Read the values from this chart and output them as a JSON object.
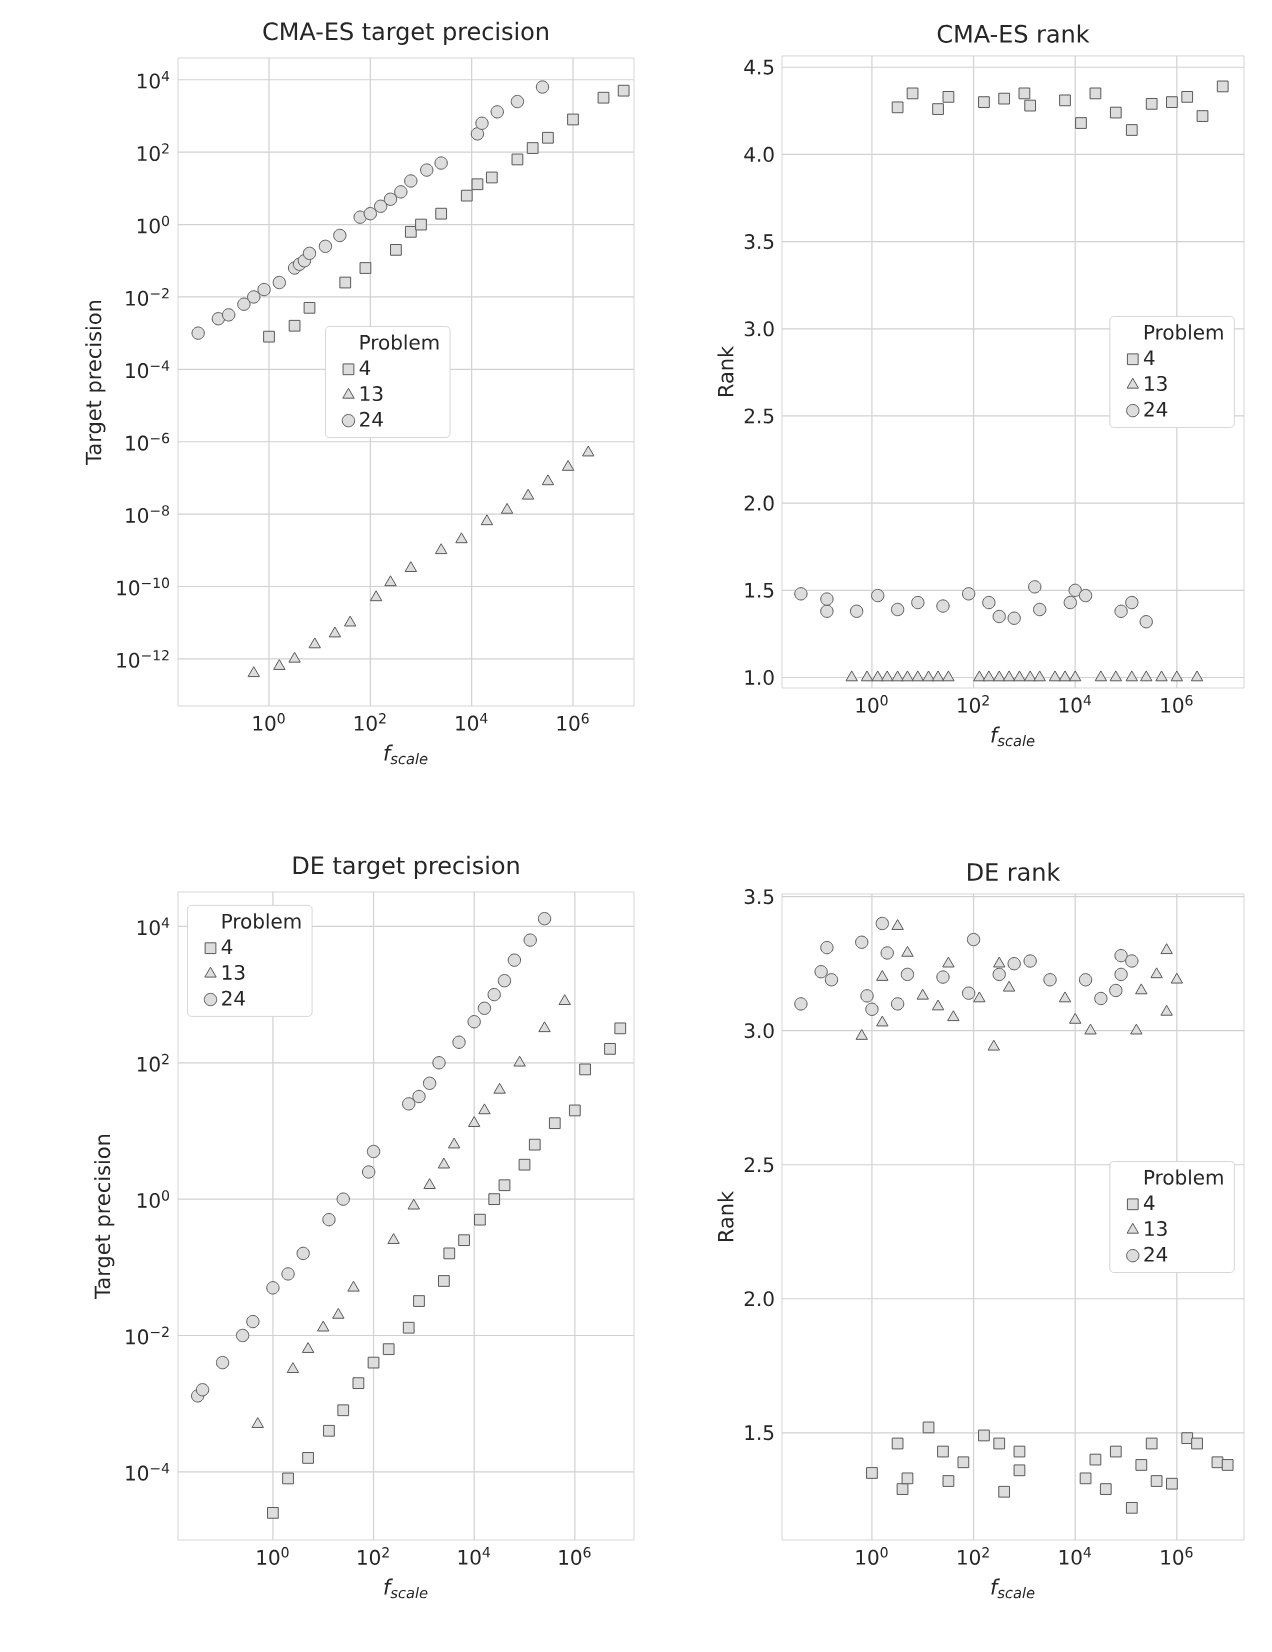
{
  "chart_data": [
    {
      "type": "scatter",
      "title": "CMA-ES target precision",
      "xlabel": "f$_{scale}$",
      "ylabel": "Target precision",
      "legend_title": "Problem",
      "legend": "center",
      "grid": true,
      "log": "xy",
      "xlim": [
        0.016,
        16000000
      ],
      "ylim": [
        5e-14,
        40000
      ],
      "xticks": [
        {
          "value": 1,
          "label": "10$^{0}$"
        },
        {
          "value": 100,
          "label": "10$^{2}$"
        },
        {
          "value": 10000,
          "label": "10$^{4}$"
        },
        {
          "value": 1000000,
          "label": "10$^{6}$"
        }
      ],
      "yticks": [
        {
          "value": 1e-12,
          "label": "10$^{−12}$"
        },
        {
          "value": 1e-10,
          "label": "10$^{−10}$"
        },
        {
          "value": 1e-08,
          "label": "10$^{−8}$"
        },
        {
          "value": 1e-06,
          "label": "10$^{−6}$"
        },
        {
          "value": 0.0001,
          "label": "10$^{−4}$"
        },
        {
          "value": 0.01,
          "label": "10$^{−2}$"
        },
        {
          "value": 1,
          "label": "10$^{0}$"
        },
        {
          "value": 100,
          "label": "10$^{2}$"
        },
        {
          "value": 10000,
          "label": "10$^{4}$"
        }
      ],
      "series": [
        {
          "name": "4",
          "color": "#dddddd",
          "marker": "square",
          "x": [
            1,
            3.2,
            6.3,
            32,
            80,
            320,
            630,
            1000,
            2500,
            8000,
            13000,
            25000,
            80000,
            160000,
            320000,
            1000000,
            4000000,
            10000000
          ],
          "values": [
            0.0008,
            0.0016,
            0.005,
            0.025,
            0.063,
            0.2,
            0.63,
            1,
            2,
            6.3,
            13,
            20,
            63,
            130,
            250,
            800,
            3200,
            5000
          ]
        },
        {
          "name": "13",
          "color": "#dddddd",
          "marker": "triangle",
          "x": [
            0.5,
            1.6,
            3.2,
            8,
            20,
            40,
            130,
            250,
            630,
            2500,
            6300,
            20000,
            50000,
            130000,
            320000,
            800000,
            2000000
          ],
          "values": [
            4e-13,
            6.3e-13,
            1e-12,
            2.5e-12,
            5e-12,
            1e-11,
            5e-11,
            1.3e-10,
            3.2e-10,
            1e-09,
            2e-09,
            6.3e-09,
            1.3e-08,
            3.2e-08,
            8e-08,
            2e-07,
            5e-07
          ]
        },
        {
          "name": "24",
          "color": "#dddddd",
          "marker": "circle",
          "x": [
            0.04,
            0.1,
            0.16,
            0.32,
            0.5,
            0.8,
            1.6,
            3.2,
            4,
            5,
            6.3,
            13,
            25,
            63,
            100,
            160,
            250,
            400,
            630,
            1300,
            2500,
            13000,
            16000,
            32000,
            80000,
            250000
          ],
          "values": [
            0.001,
            0.0025,
            0.0032,
            0.0063,
            0.01,
            0.016,
            0.025,
            0.063,
            0.08,
            0.1,
            0.16,
            0.25,
            0.5,
            1.6,
            2,
            3.2,
            5,
            8,
            16,
            32,
            50,
            320,
            630,
            1300,
            2500,
            6300
          ]
        }
      ]
    },
    {
      "type": "scatter",
      "title": "CMA-ES rank",
      "xlabel": "f$_{scale}$",
      "ylabel": "Rank",
      "legend_title": "Problem",
      "legend": "center right",
      "grid": true,
      "log": "x",
      "xlim": [
        0.017,
        21000000
      ],
      "ylim": [
        0.94,
        4.565
      ],
      "xticks": [
        {
          "value": 1,
          "label": "10$^{0}$"
        },
        {
          "value": 100,
          "label": "10$^{2}$"
        },
        {
          "value": 10000,
          "label": "10$^{4}$"
        },
        {
          "value": 1000000,
          "label": "10$^{6}$"
        }
      ],
      "yticks": [
        {
          "value": 1,
          "label": "1.0"
        },
        1.5,
        {
          "value": 2,
          "label": "2.0"
        },
        2.5,
        {
          "value": 3,
          "label": "3.0"
        },
        3.5,
        {
          "value": 4,
          "label": "4.0"
        },
        4.5
      ],
      "series": [
        {
          "name": "4",
          "color": "#dddddd",
          "marker": "square",
          "x": [
            3.2,
            6.3,
            20,
            32,
            160,
            400,
            1000,
            1300,
            6300,
            13000,
            25000,
            63000,
            130000,
            320000,
            800000,
            1600000,
            3200000,
            8000000
          ],
          "values": [
            4.27,
            4.35,
            4.26,
            4.33,
            4.3,
            4.32,
            4.35,
            4.28,
            4.31,
            4.18,
            4.35,
            4.24,
            4.14,
            4.29,
            4.3,
            4.33,
            4.22,
            4.39
          ]
        },
        {
          "name": "13",
          "color": "#dddddd",
          "marker": "triangle",
          "x": [
            0.4,
            0.8,
            1.3,
            2,
            3.2,
            5,
            8,
            13,
            20,
            32,
            130,
            200,
            320,
            500,
            800,
            1300,
            2000,
            4000,
            6300,
            10000,
            32000,
            63000,
            130000,
            250000,
            500000,
            1000000,
            2500000
          ],
          "values": [
            1,
            1,
            1,
            1,
            1,
            1,
            1,
            1,
            1,
            1,
            1,
            1,
            1,
            1,
            1,
            1,
            1,
            1,
            1,
            1,
            1,
            1,
            1,
            1,
            1,
            1,
            1
          ]
        },
        {
          "name": "24",
          "color": "#dddddd",
          "marker": "circle",
          "x": [
            0.04,
            0.13,
            0.13,
            0.5,
            1.3,
            3.2,
            8,
            25,
            80,
            200,
            320,
            630,
            1600,
            2000,
            8000,
            10000,
            16000,
            80000,
            130000,
            250000
          ],
          "values": [
            1.48,
            1.38,
            1.45,
            1.38,
            1.47,
            1.39,
            1.43,
            1.41,
            1.48,
            1.43,
            1.35,
            1.34,
            1.52,
            1.39,
            1.43,
            1.5,
            1.47,
            1.38,
            1.43,
            1.32
          ]
        }
      ]
    },
    {
      "type": "scatter",
      "title": "DE target precision",
      "xlabel": "f$_{scale}$",
      "ylabel": "Target precision",
      "legend_title": "Problem",
      "legend": "top left",
      "grid": true,
      "log": "xy",
      "xlim": [
        0.013,
        15000000
      ],
      "ylim": [
        1e-05,
        32000
      ],
      "xticks": [
        {
          "value": 1,
          "label": "10$^{0}$"
        },
        {
          "value": 100,
          "label": "10$^{2}$"
        },
        {
          "value": 10000,
          "label": "10$^{4}$"
        },
        {
          "value": 1000000,
          "label": "10$^{6}$"
        }
      ],
      "yticks": [
        {
          "value": 0.0001,
          "label": "10$^{−4}$"
        },
        {
          "value": 0.01,
          "label": "10$^{−2}$"
        },
        {
          "value": 1,
          "label": "10$^{0}$"
        },
        {
          "value": 100,
          "label": "10$^{2}$"
        },
        {
          "value": 10000,
          "label": "10$^{4}$"
        }
      ],
      "series": [
        {
          "name": "4",
          "color": "#dddddd",
          "marker": "square",
          "x": [
            1,
            2,
            5,
            13,
            25,
            50,
            100,
            200,
            500,
            800,
            2500,
            3200,
            6300,
            13000,
            25000,
            40000,
            100000,
            160000,
            400000,
            1000000,
            1600000,
            5000000,
            8000000
          ],
          "values": [
            2.5e-05,
            8e-05,
            0.00016,
            0.0004,
            0.0008,
            0.002,
            0.004,
            0.0063,
            0.013,
            0.032,
            0.063,
            0.16,
            0.25,
            0.5,
            1,
            1.6,
            3.2,
            6.3,
            13,
            20,
            80,
            160,
            320
          ]
        },
        {
          "name": "13",
          "color": "#dddddd",
          "marker": "triangle",
          "x": [
            0.5,
            2.5,
            5,
            10,
            20,
            40,
            250,
            630,
            1300,
            2500,
            4000,
            10000,
            16000,
            32000,
            80000,
            250000,
            630000
          ],
          "values": [
            0.0005,
            0.0032,
            0.0063,
            0.013,
            0.02,
            0.05,
            0.25,
            0.8,
            1.6,
            3.2,
            6.3,
            13,
            20,
            40,
            100,
            320,
            800
          ]
        },
        {
          "name": "24",
          "color": "#dddddd",
          "marker": "circle",
          "x": [
            0.032,
            0.04,
            0.1,
            0.25,
            0.4,
            1,
            2,
            4,
            13,
            25,
            80,
            100,
            500,
            800,
            1300,
            2000,
            5000,
            10000,
            16000,
            25000,
            40000,
            63000,
            130000,
            250000
          ],
          "values": [
            0.0013,
            0.0016,
            0.004,
            0.01,
            0.016,
            0.05,
            0.08,
            0.16,
            0.5,
            1,
            2.5,
            5,
            25,
            32,
            50,
            100,
            200,
            400,
            630,
            1000,
            1600,
            3200,
            6300,
            13000
          ]
        }
      ]
    },
    {
      "type": "scatter",
      "title": "DE rank",
      "xlabel": "f$_{scale}$",
      "ylabel": "Rank",
      "legend_title": "Problem",
      "legend": "center right",
      "grid": true,
      "log": "x",
      "xlim": [
        0.017,
        21000000
      ],
      "ylim": [
        1.1,
        3.51
      ],
      "xticks": [
        {
          "value": 1,
          "label": "10$^{0}$"
        },
        {
          "value": 100,
          "label": "10$^{2}$"
        },
        {
          "value": 10000,
          "label": "10$^{4}$"
        },
        {
          "value": 1000000,
          "label": "10$^{6}$"
        }
      ],
      "yticks": [
        1.5,
        {
          "value": 2,
          "label": "2.0"
        },
        2.5,
        {
          "value": 3,
          "label": "3.0"
        },
        3.5
      ],
      "series": [
        {
          "name": "4",
          "color": "#dddddd",
          "marker": "square",
          "x": [
            1,
            3.2,
            4,
            5,
            13,
            25,
            32,
            63,
            160,
            320,
            400,
            800,
            800,
            16000,
            40000,
            25000,
            63000,
            130000,
            200000,
            320000,
            400000,
            800000,
            1600000,
            2500000,
            6300000,
            10000000
          ],
          "values": [
            1.35,
            1.46,
            1.29,
            1.33,
            1.52,
            1.43,
            1.32,
            1.39,
            1.49,
            1.46,
            1.28,
            1.36,
            1.43,
            1.33,
            1.29,
            1.4,
            1.43,
            1.22,
            1.38,
            1.46,
            1.32,
            1.31,
            1.48,
            1.46,
            1.39,
            1.38
          ]
        },
        {
          "name": "13",
          "color": "#dddddd",
          "marker": "triangle",
          "x": [
            0.63,
            1.6,
            3.2,
            1.6,
            5,
            10,
            20,
            32,
            40,
            130,
            250,
            500,
            320,
            6300,
            10000,
            20000,
            160000,
            200000,
            400000,
            630000,
            630000,
            1000000
          ],
          "values": [
            2.98,
            3.03,
            3.39,
            3.2,
            3.29,
            3.13,
            3.09,
            3.25,
            3.05,
            3.12,
            2.94,
            3.16,
            3.25,
            3.12,
            3.04,
            3.0,
            3.0,
            3.15,
            3.21,
            3.3,
            3.07,
            3.19
          ]
        },
        {
          "name": "24",
          "color": "#dddddd",
          "marker": "circle",
          "x": [
            0.04,
            0.1,
            0.13,
            0.16,
            0.63,
            0.8,
            1,
            1.6,
            2,
            3.2,
            5,
            25,
            100,
            80,
            320,
            630,
            1300,
            3200,
            16000,
            32000,
            63000,
            80000,
            80000,
            130000
          ],
          "values": [
            3.1,
            3.22,
            3.31,
            3.19,
            3.33,
            3.13,
            3.08,
            3.4,
            3.29,
            3.1,
            3.21,
            3.2,
            3.34,
            3.14,
            3.21,
            3.25,
            3.26,
            3.19,
            3.19,
            3.12,
            3.15,
            3.21,
            3.28,
            3.26
          ]
        }
      ]
    }
  ]
}
